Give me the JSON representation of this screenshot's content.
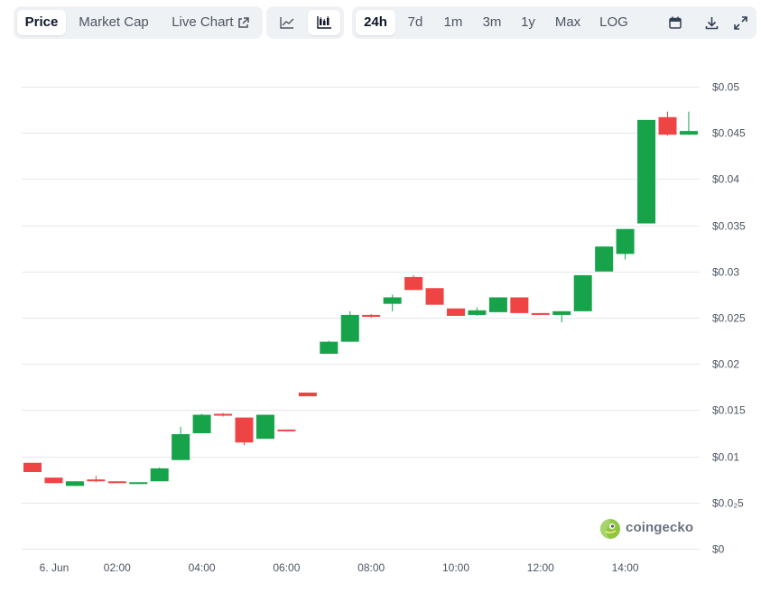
{
  "toolbar": {
    "metric_tabs": {
      "price": "Price",
      "market_cap": "Market Cap",
      "live_chart": "Live Chart"
    },
    "chart_type_icons": [
      "line-chart-icon",
      "candlestick-chart-icon"
    ],
    "ranges": [
      "24h",
      "7d",
      "1m",
      "3m",
      "1y",
      "Max",
      "LOG"
    ],
    "active_range": "24h",
    "active_metric": "Price",
    "active_chart_type": "candlestick",
    "tool_icons": [
      "calendar-icon",
      "download-icon",
      "expand-icon"
    ]
  },
  "watermark": {
    "text": "coingecko"
  },
  "colors": {
    "up": "#16a34a",
    "down": "#ef4444",
    "grid": "#e5e7eb",
    "tick": "#4b5563"
  },
  "chart_data": {
    "type": "candlestick",
    "title": "",
    "x_ticks": [
      "6. Jun",
      "02:00",
      "04:00",
      "06:00",
      "08:00",
      "10:00",
      "12:00",
      "14:00"
    ],
    "y_ticks": [
      "$0",
      "$0.0₂5",
      "$0.01",
      "$0.015",
      "$0.02",
      "$0.025",
      "$0.03",
      "$0.035",
      "$0.04",
      "$0.045",
      "$0.05"
    ],
    "y_values": [
      0,
      0.005,
      0.01,
      0.015,
      0.02,
      0.025,
      0.03,
      0.035,
      0.04,
      0.045,
      0.05
    ],
    "ylim": [
      0,
      0.05
    ],
    "grid": true,
    "candles": [
      {
        "time": "00:00",
        "open": 0.0093,
        "high": 0.0093,
        "low": 0.0083,
        "close": 0.0083
      },
      {
        "time": "00:30",
        "open": 0.0077,
        "high": 0.0077,
        "low": 0.0071,
        "close": 0.0071
      },
      {
        "time": "01:00",
        "open": 0.0068,
        "high": 0.0073,
        "low": 0.0068,
        "close": 0.0073
      },
      {
        "time": "01:30",
        "open": 0.0075,
        "high": 0.0079,
        "low": 0.0072,
        "close": 0.0073
      },
      {
        "time": "02:00",
        "open": 0.0073,
        "high": 0.0073,
        "low": 0.0071,
        "close": 0.0071
      },
      {
        "time": "02:30",
        "open": 0.0071,
        "high": 0.0072,
        "low": 0.0071,
        "close": 0.0072
      },
      {
        "time": "03:00",
        "open": 0.0073,
        "high": 0.0088,
        "low": 0.0073,
        "close": 0.0087
      },
      {
        "time": "03:30",
        "open": 0.0096,
        "high": 0.0132,
        "low": 0.0096,
        "close": 0.0124
      },
      {
        "time": "04:00",
        "open": 0.0125,
        "high": 0.0146,
        "low": 0.0125,
        "close": 0.0145
      },
      {
        "time": "04:30",
        "open": 0.0146,
        "high": 0.0147,
        "low": 0.0143,
        "close": 0.0144
      },
      {
        "time": "05:00",
        "open": 0.0142,
        "high": 0.0142,
        "low": 0.0112,
        "close": 0.0115
      },
      {
        "time": "05:30",
        "open": 0.0119,
        "high": 0.0145,
        "low": 0.0119,
        "close": 0.0145
      },
      {
        "time": "06:00",
        "open": 0.0129,
        "high": 0.0129,
        "low": 0.0128,
        "close": 0.0128
      },
      {
        "time": "06:30",
        "open": 0.0169,
        "high": 0.0169,
        "low": 0.0165,
        "close": 0.0165
      },
      {
        "time": "07:00",
        "open": 0.0211,
        "high": 0.0225,
        "low": 0.0211,
        "close": 0.0224
      },
      {
        "time": "07:30",
        "open": 0.0224,
        "high": 0.0257,
        "low": 0.0224,
        "close": 0.0253
      },
      {
        "time": "08:00",
        "open": 0.0253,
        "high": 0.0254,
        "low": 0.025,
        "close": 0.0251
      },
      {
        "time": "08:30",
        "open": 0.0265,
        "high": 0.0275,
        "low": 0.0257,
        "close": 0.0272
      },
      {
        "time": "09:00",
        "open": 0.0294,
        "high": 0.0296,
        "low": 0.028,
        "close": 0.028
      },
      {
        "time": "09:30",
        "open": 0.0282,
        "high": 0.0282,
        "low": 0.0264,
        "close": 0.0264
      },
      {
        "time": "10:00",
        "open": 0.026,
        "high": 0.026,
        "low": 0.0252,
        "close": 0.0252
      },
      {
        "time": "10:30",
        "open": 0.0253,
        "high": 0.0261,
        "low": 0.0252,
        "close": 0.0258
      },
      {
        "time": "11:00",
        "open": 0.0256,
        "high": 0.0272,
        "low": 0.0256,
        "close": 0.0272
      },
      {
        "time": "11:30",
        "open": 0.0272,
        "high": 0.0272,
        "low": 0.0255,
        "close": 0.0255
      },
      {
        "time": "12:00",
        "open": 0.0255,
        "high": 0.0255,
        "low": 0.0253,
        "close": 0.0253
      },
      {
        "time": "12:30",
        "open": 0.0253,
        "high": 0.0257,
        "low": 0.0245,
        "close": 0.0257
      },
      {
        "time": "13:00",
        "open": 0.0257,
        "high": 0.0296,
        "low": 0.0257,
        "close": 0.0296
      },
      {
        "time": "13:30",
        "open": 0.03,
        "high": 0.0327,
        "low": 0.03,
        "close": 0.0327
      },
      {
        "time": "14:00",
        "open": 0.0319,
        "high": 0.0346,
        "low": 0.0313,
        "close": 0.0346
      },
      {
        "time": "14:30",
        "open": 0.0352,
        "high": 0.0464,
        "low": 0.0352,
        "close": 0.0464
      },
      {
        "time": "15:00",
        "open": 0.0467,
        "high": 0.0473,
        "low": 0.0447,
        "close": 0.0448
      },
      {
        "time": "15:30",
        "open": 0.0448,
        "high": 0.0473,
        "low": 0.0448,
        "close": 0.0452
      }
    ]
  }
}
